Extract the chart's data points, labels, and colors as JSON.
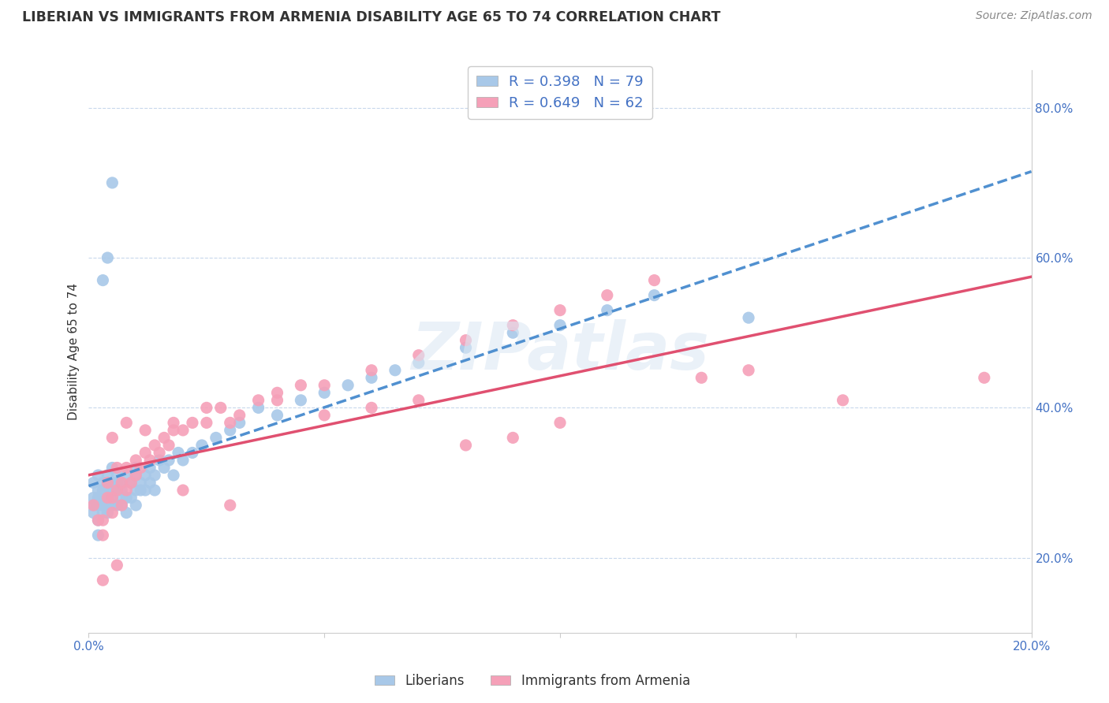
{
  "title": "LIBERIAN VS IMMIGRANTS FROM ARMENIA DISABILITY AGE 65 TO 74 CORRELATION CHART",
  "source": "Source: ZipAtlas.com",
  "ylabel": "Disability Age 65 to 74",
  "xlim": [
    0.0,
    0.2
  ],
  "ylim": [
    0.1,
    0.85
  ],
  "liberian_R": 0.398,
  "liberian_N": 79,
  "armenia_R": 0.649,
  "armenia_N": 62,
  "liberian_color": "#a8c8e8",
  "armenia_color": "#f5a0b8",
  "liberian_line_color": "#5090d0",
  "armenia_line_color": "#e05070",
  "background_color": "#ffffff",
  "watermark": "ZIPatlas",
  "liberian_x": [
    0.001,
    0.001,
    0.001,
    0.001,
    0.002,
    0.002,
    0.002,
    0.002,
    0.002,
    0.003,
    0.003,
    0.003,
    0.003,
    0.003,
    0.004,
    0.004,
    0.004,
    0.004,
    0.004,
    0.004,
    0.005,
    0.005,
    0.005,
    0.005,
    0.005,
    0.006,
    0.006,
    0.006,
    0.006,
    0.007,
    0.007,
    0.007,
    0.007,
    0.008,
    0.008,
    0.008,
    0.009,
    0.009,
    0.01,
    0.01,
    0.01,
    0.01,
    0.011,
    0.011,
    0.012,
    0.012,
    0.013,
    0.013,
    0.014,
    0.014,
    0.015,
    0.016,
    0.017,
    0.018,
    0.019,
    0.02,
    0.022,
    0.024,
    0.027,
    0.03,
    0.032,
    0.036,
    0.04,
    0.045,
    0.05,
    0.055,
    0.06,
    0.065,
    0.07,
    0.08,
    0.09,
    0.1,
    0.11,
    0.12,
    0.14,
    0.003,
    0.005,
    0.002,
    0.004
  ],
  "liberian_y": [
    0.27,
    0.3,
    0.28,
    0.26,
    0.31,
    0.27,
    0.29,
    0.25,
    0.28,
    0.3,
    0.27,
    0.26,
    0.29,
    0.28,
    0.31,
    0.27,
    0.29,
    0.26,
    0.28,
    0.3,
    0.32,
    0.29,
    0.27,
    0.3,
    0.28,
    0.3,
    0.27,
    0.29,
    0.31,
    0.28,
    0.3,
    0.27,
    0.29,
    0.31,
    0.28,
    0.26,
    0.3,
    0.28,
    0.32,
    0.29,
    0.27,
    0.31,
    0.29,
    0.3,
    0.31,
    0.29,
    0.3,
    0.32,
    0.29,
    0.31,
    0.33,
    0.32,
    0.33,
    0.31,
    0.34,
    0.33,
    0.34,
    0.35,
    0.36,
    0.37,
    0.38,
    0.4,
    0.39,
    0.41,
    0.42,
    0.43,
    0.44,
    0.45,
    0.46,
    0.48,
    0.5,
    0.51,
    0.53,
    0.55,
    0.52,
    0.57,
    0.7,
    0.23,
    0.6
  ],
  "armenia_x": [
    0.001,
    0.002,
    0.003,
    0.003,
    0.004,
    0.004,
    0.005,
    0.005,
    0.006,
    0.006,
    0.007,
    0.007,
    0.008,
    0.008,
    0.009,
    0.01,
    0.01,
    0.011,
    0.012,
    0.013,
    0.014,
    0.015,
    0.016,
    0.017,
    0.018,
    0.02,
    0.022,
    0.025,
    0.028,
    0.032,
    0.036,
    0.04,
    0.045,
    0.05,
    0.06,
    0.07,
    0.08,
    0.09,
    0.1,
    0.11,
    0.12,
    0.13,
    0.14,
    0.005,
    0.008,
    0.012,
    0.018,
    0.025,
    0.03,
    0.04,
    0.05,
    0.06,
    0.07,
    0.08,
    0.09,
    0.1,
    0.003,
    0.006,
    0.02,
    0.03,
    0.19,
    0.16
  ],
  "armenia_y": [
    0.27,
    0.25,
    0.25,
    0.23,
    0.3,
    0.28,
    0.28,
    0.26,
    0.32,
    0.29,
    0.3,
    0.27,
    0.32,
    0.29,
    0.3,
    0.33,
    0.31,
    0.32,
    0.34,
    0.33,
    0.35,
    0.34,
    0.36,
    0.35,
    0.37,
    0.37,
    0.38,
    0.38,
    0.4,
    0.39,
    0.41,
    0.41,
    0.43,
    0.43,
    0.45,
    0.47,
    0.49,
    0.51,
    0.53,
    0.55,
    0.57,
    0.44,
    0.45,
    0.36,
    0.38,
    0.37,
    0.38,
    0.4,
    0.38,
    0.42,
    0.39,
    0.4,
    0.41,
    0.35,
    0.36,
    0.38,
    0.17,
    0.19,
    0.29,
    0.27,
    0.44,
    0.41
  ]
}
